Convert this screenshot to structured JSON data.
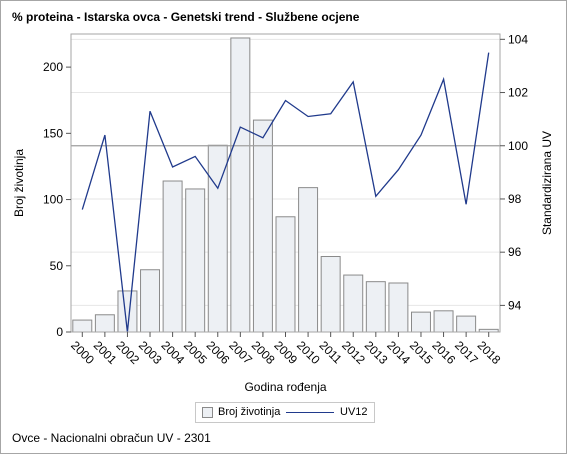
{
  "title": "% proteina - Istarska ovca - Genetski trend - Službene ocjene",
  "footnote": "Ovce - Nacionalni obračun UV - 2301",
  "legend": {
    "bars_label": "Broj životinja",
    "line_label": "UV12"
  },
  "colors": {
    "bar_fill": "#edf0f4",
    "bar_stroke": "#8a8a8a",
    "line": "#203a8c",
    "grid": "#e6e6e6",
    "ref_line": "#a0a0a0"
  },
  "chart_data": {
    "type": "bar",
    "xlabel": "Godina rođenja",
    "ylabel": "Broj životinja",
    "y2label": "Standardizirana UV",
    "categories": [
      "2000",
      "2001",
      "2002",
      "2003",
      "2004",
      "2005",
      "2006",
      "2007",
      "2008",
      "2009",
      "2010",
      "2011",
      "2012",
      "2013",
      "2014",
      "2015",
      "2016",
      "2017",
      "2018"
    ],
    "ylim": [
      0,
      225
    ],
    "yticks": [
      0,
      50,
      100,
      150,
      200
    ],
    "y2lim": [
      93,
      104.2
    ],
    "y2ticks": [
      94,
      96,
      98,
      100,
      102,
      104
    ],
    "reference_line_y2": 100,
    "grid": true,
    "legend_position": "bottom",
    "series": [
      {
        "name": "Broj životinja",
        "type": "bar",
        "axis": "left",
        "values": [
          9,
          13,
          31,
          47,
          114,
          108,
          141,
          222,
          160,
          87,
          109,
          57,
          43,
          38,
          37,
          15,
          16,
          12,
          2
        ]
      },
      {
        "name": "UV12",
        "type": "line",
        "axis": "right",
        "values": [
          97.6,
          100.4,
          93.0,
          101.3,
          99.2,
          99.6,
          98.4,
          100.7,
          100.3,
          101.7,
          101.1,
          101.2,
          102.4,
          98.1,
          99.1,
          100.4,
          102.5,
          97.8,
          103.5
        ]
      }
    ]
  }
}
